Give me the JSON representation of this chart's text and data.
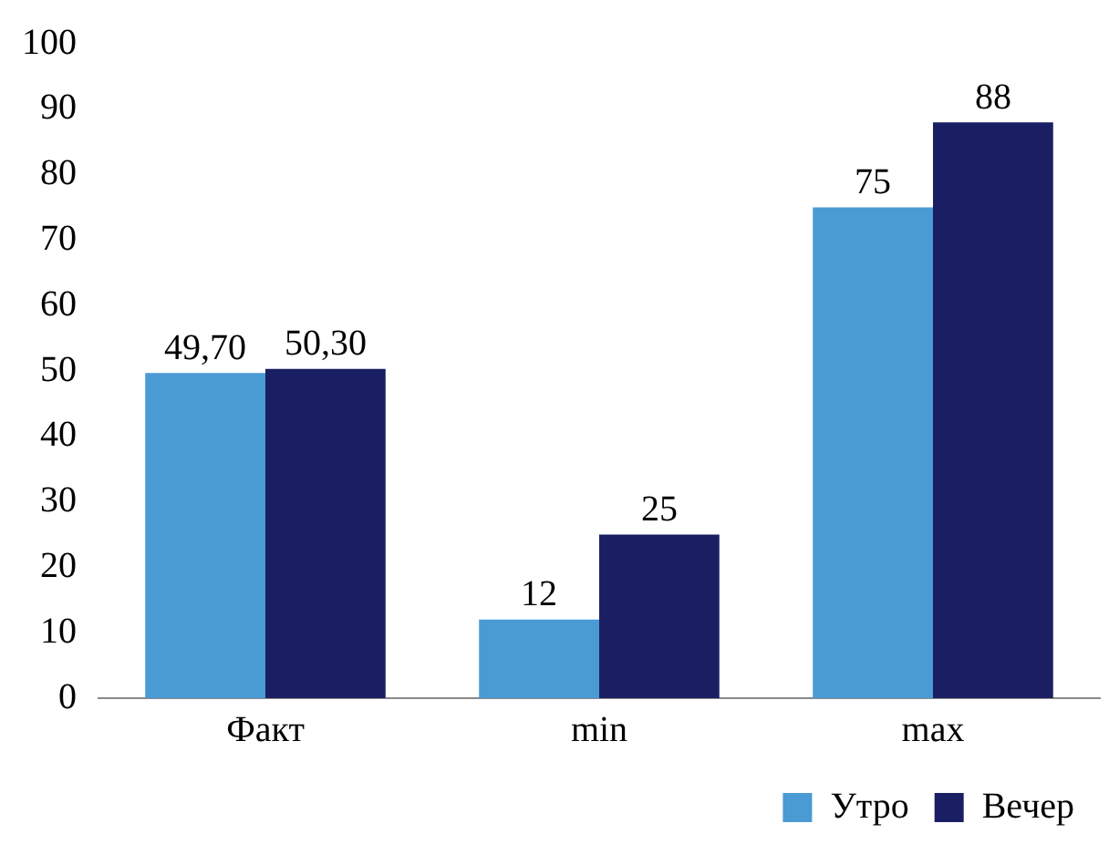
{
  "chart_data": {
    "type": "bar",
    "categories": [
      "Факт",
      "min",
      "max"
    ],
    "series": [
      {
        "name": "Утро",
        "color": "#4a9ad4",
        "values": [
          49.7,
          12,
          75
        ],
        "value_labels": [
          "49,70",
          "12",
          "75"
        ]
      },
      {
        "name": "Вечер",
        "color": "#1a1f63",
        "values": [
          50.3,
          25,
          88
        ],
        "value_labels": [
          "50,30",
          "25",
          "88"
        ]
      }
    ],
    "ylim": [
      0,
      100
    ],
    "yticks": [
      0,
      10,
      20,
      30,
      40,
      50,
      60,
      70,
      80,
      90,
      100
    ],
    "grid": false,
    "legend": "bottom right"
  }
}
